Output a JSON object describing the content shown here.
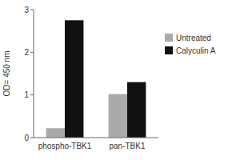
{
  "chart_data": {
    "type": "bar",
    "categories": [
      "phospho-TBK1",
      "pan-TBK1"
    ],
    "series": [
      {
        "name": "Untreated",
        "color": "#aaaaaa",
        "values": [
          0.22,
          1.02
        ]
      },
      {
        "name": "Calyculin A",
        "color": "#111111",
        "values": [
          2.75,
          1.3
        ]
      }
    ],
    "ylabel": "OD= 450 nm",
    "ylim": [
      0,
      3
    ],
    "yticks": [
      0,
      1,
      2,
      3
    ],
    "legend": "right"
  }
}
